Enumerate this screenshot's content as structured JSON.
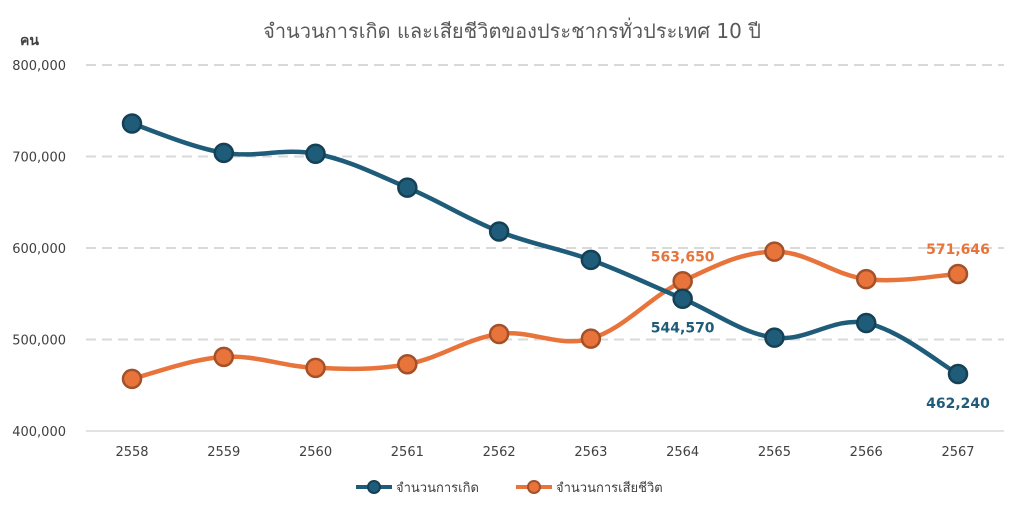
{
  "chart_data": {
    "type": "line",
    "title": "จำนวนการเกิด และเสียชีวิตของประชากรทั่วประเทศ 10 ปี",
    "ylabel": "คน",
    "ylim": [
      400000,
      800000
    ],
    "yticks": [
      "400,000",
      "500,000",
      "600,000",
      "700,000",
      "800,000"
    ],
    "ytick_values": [
      400000,
      500000,
      600000,
      700000,
      800000
    ],
    "categories": [
      "2558",
      "2559",
      "2560",
      "2561",
      "2562",
      "2563",
      "2564",
      "2565",
      "2566",
      "2567"
    ],
    "grid": true,
    "legend": "bottom",
    "series": [
      {
        "name": "จำนวนการเกิด",
        "color": "#1f5c7a",
        "values": [
          736000,
          704000,
          703000,
          666000,
          618000,
          587000,
          544570,
          502000,
          518000,
          462240
        ],
        "labels": [
          {
            "index": 6,
            "text": "544,570",
            "placement": "below"
          },
          {
            "index": 9,
            "text": "462,240",
            "placement": "below"
          }
        ]
      },
      {
        "name": "จำนวนการเสียชีวิต",
        "color": "#e8743b",
        "values": [
          457000,
          481000,
          469000,
          473000,
          506000,
          501000,
          563650,
          596000,
          566000,
          571646
        ],
        "labels": [
          {
            "index": 6,
            "text": "563,650",
            "placement": "above"
          },
          {
            "index": 9,
            "text": "571,646",
            "placement": "above"
          }
        ]
      }
    ]
  }
}
